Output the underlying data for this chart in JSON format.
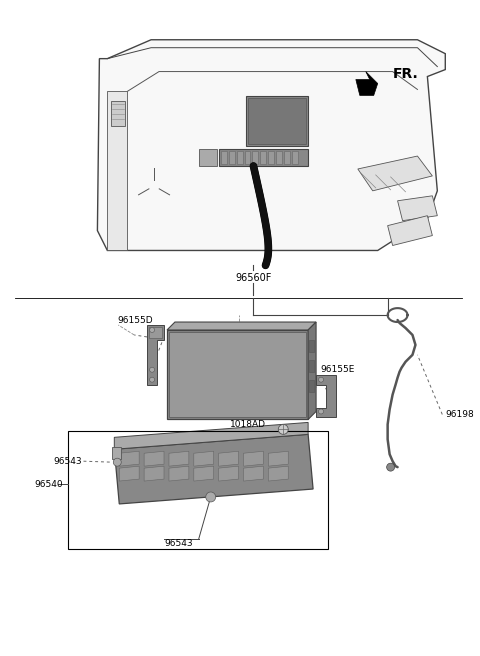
{
  "bg_color": "#ffffff",
  "line_color": "#444444",
  "dark_gray": "#555555",
  "mid_gray": "#888888",
  "light_gray": "#bbbbbb",
  "part_color": "#888888",
  "fr_text": "FR.",
  "label_96560F": "96560F",
  "label_96155D": "96155D",
  "label_96155E": "96155E",
  "label_96198": "96198",
  "label_96543": "96543",
  "label_96540": "96540",
  "label_1018AD": "1018AD"
}
